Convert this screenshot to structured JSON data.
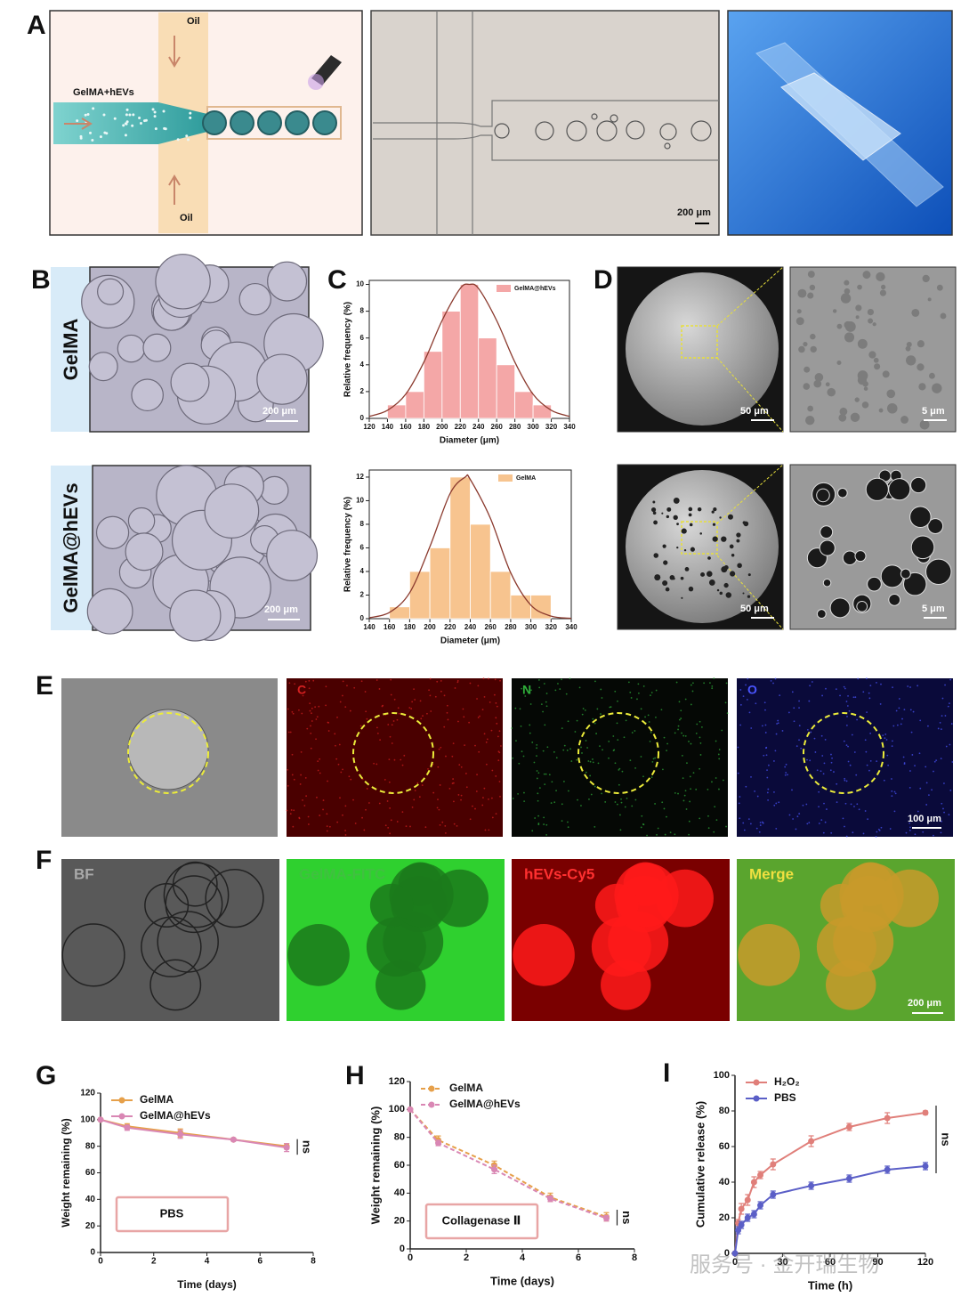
{
  "panel_labels": [
    "A",
    "B",
    "C",
    "D",
    "E",
    "F",
    "G",
    "H",
    "I"
  ],
  "panel_a": {
    "schematic_labels": [
      "Oil",
      "GelMA+hEVs",
      "Oil"
    ],
    "scale_bar": "200 μm"
  },
  "panel_b": {
    "row_labels": [
      "GelMA",
      "GelMA@hEVs"
    ],
    "scale_bars": [
      "200 μm",
      "200 μm"
    ]
  },
  "panel_d": {
    "scale_bars": [
      "50 μm",
      "5 μm",
      "50 μm",
      "5 μm"
    ]
  },
  "panel_e": {
    "channel_labels": [
      "C",
      "N",
      "O"
    ],
    "scale_bar": "100 μm"
  },
  "panel_f": {
    "channel_labels": [
      "BF",
      "GelMA-FITC",
      "hEVs-Cy5",
      "Merge"
    ],
    "scale_bar": "200 μm"
  },
  "watermark": "服务号 · 金开瑞生物",
  "chart_data": [
    {
      "type": "histogram",
      "x_label": "Diameter (μm)",
      "y_label": "Relative frequency (%)",
      "bins": [
        140,
        160,
        180,
        200,
        220,
        240,
        260,
        280,
        300,
        320
      ],
      "series": [
        {
          "name": "GelMA@hEVs",
          "color": "#f4a7a7",
          "values": [
            1,
            2,
            5,
            8,
            10,
            6,
            4,
            2,
            1
          ]
        }
      ],
      "fit": {
        "color": "#8b3a2e",
        "x": [
          120,
          140,
          160,
          180,
          200,
          220,
          230,
          240,
          260,
          280,
          300,
          320,
          340
        ],
        "values": [
          0.15,
          0.6,
          1.8,
          4.2,
          7.3,
          9.7,
          10,
          9.7,
          7.3,
          4.2,
          1.8,
          0.6,
          0.15
        ]
      },
      "xlim": [
        120,
        340
      ],
      "xticks": [
        120,
        140,
        160,
        180,
        200,
        220,
        240,
        260,
        280,
        300,
        320,
        340
      ],
      "ylim": [
        0,
        10.3
      ],
      "yticks": [
        0,
        2,
        4,
        6,
        8,
        10
      ]
    },
    {
      "type": "histogram",
      "x_label": "Diameter (μm)",
      "y_label": "Relative frequency (%)",
      "bins": [
        160,
        180,
        200,
        220,
        240,
        260,
        280,
        300,
        320
      ],
      "series": [
        {
          "name": "GelMA",
          "color": "#f7c48f",
          "values": [
            1,
            4,
            6,
            12,
            8,
            4,
            2,
            2
          ]
        }
      ],
      "fit": {
        "color": "#8b3a2e",
        "x": [
          140,
          160,
          180,
          200,
          220,
          235,
          240,
          260,
          280,
          300,
          320,
          340
        ],
        "values": [
          0.08,
          0.53,
          2.2,
          6.1,
          10.6,
          12,
          11.8,
          8.5,
          3.9,
          1.15,
          0.22,
          0.03
        ]
      },
      "xlim": [
        140,
        340
      ],
      "xticks": [
        140,
        160,
        180,
        200,
        220,
        240,
        260,
        280,
        300,
        320,
        340
      ],
      "ylim": [
        0,
        12.6
      ],
      "yticks": [
        0,
        2,
        4,
        6,
        8,
        10,
        12
      ]
    },
    {
      "type": "line",
      "x_label": "Time (days)",
      "y_label": "Weight remaining (%)",
      "x": [
        0,
        1,
        3,
        5,
        7
      ],
      "series": [
        {
          "name": "GelMA",
          "color": "#e6a04a",
          "values": [
            100,
            95,
            90,
            85,
            80
          ],
          "errors": [
            0,
            2,
            3,
            1,
            2
          ]
        },
        {
          "name": "GelMA@hEVs",
          "color": "#d987b4",
          "values": [
            100,
            94,
            89,
            85,
            79
          ],
          "errors": [
            0,
            2,
            3,
            1,
            3
          ]
        }
      ],
      "dashed": false,
      "xlim": [
        0,
        8
      ],
      "xticks": [
        0,
        2,
        4,
        6,
        8
      ],
      "ylim": [
        0,
        120
      ],
      "yticks": [
        0,
        20,
        40,
        60,
        80,
        100,
        120
      ],
      "annotations": {
        "condition": "PBS",
        "significance": "ns"
      }
    },
    {
      "type": "line",
      "x_label": "Time (days)",
      "y_label": "Weight remaining (%)",
      "x": [
        0,
        1,
        3,
        5,
        7
      ],
      "series": [
        {
          "name": "GelMA",
          "color": "#e6a04a",
          "values": [
            100,
            78,
            60,
            37,
            23
          ],
          "errors": [
            0,
            3,
            3,
            3,
            3
          ]
        },
        {
          "name": "GelMA@hEVs",
          "color": "#d987b4",
          "values": [
            100,
            76,
            57,
            36,
            22
          ],
          "errors": [
            0,
            2,
            3,
            2,
            2
          ]
        }
      ],
      "dashed": true,
      "xlim": [
        0,
        8
      ],
      "xticks": [
        0,
        2,
        4,
        6,
        8
      ],
      "ylim": [
        0,
        120
      ],
      "yticks": [
        0,
        20,
        40,
        60,
        80,
        100,
        120
      ],
      "annotations": {
        "condition": "Collagenase Ⅱ",
        "significance": "ns"
      }
    },
    {
      "type": "line",
      "x_label": "Time (h)",
      "y_label": "Cumulative release (%)",
      "x": [
        0,
        2,
        4,
        8,
        12,
        16,
        24,
        48,
        72,
        96,
        120
      ],
      "series": [
        {
          "name": "H₂O₂",
          "color": "#e07f7a",
          "values": [
            0,
            17,
            25,
            30,
            40,
            44,
            50,
            63,
            71,
            76,
            79
          ],
          "errors": [
            0,
            2,
            3,
            3,
            3,
            2,
            3,
            3,
            2,
            3,
            1
          ]
        },
        {
          "name": "PBS",
          "color": "#5b5fc7",
          "values": [
            0,
            13,
            16,
            20,
            22,
            27,
            33,
            38,
            42,
            47,
            49
          ],
          "errors": [
            0,
            2,
            2,
            2,
            2,
            2,
            2,
            2,
            2,
            2,
            2
          ]
        }
      ],
      "dashed": false,
      "xlim": [
        0,
        120
      ],
      "xticks": [
        0,
        30,
        60,
        90,
        120
      ],
      "ylim": [
        0,
        100
      ],
      "yticks": [
        0,
        20,
        40,
        60,
        80,
        100
      ],
      "annotations": {
        "significance": "ns"
      }
    }
  ]
}
